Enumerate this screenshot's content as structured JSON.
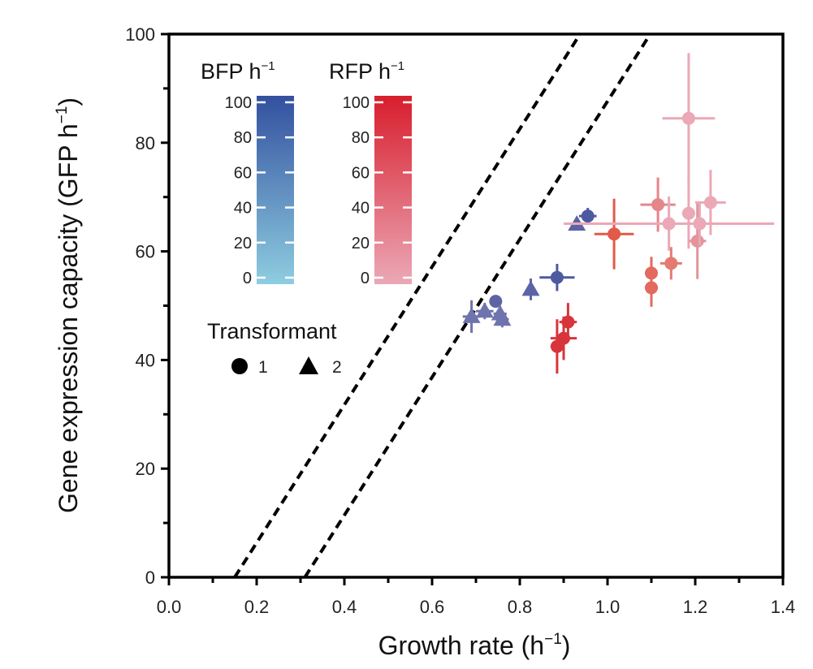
{
  "chart_data": {
    "type": "scatter",
    "xlabel": "Growth rate (h",
    "ylabel": "Gene expression capacity (GFP h",
    "unit_superscript": "−1",
    "xlim": [
      0.0,
      1.4
    ],
    "ylim": [
      0,
      100
    ],
    "xticks": [
      "0.0",
      "0.2",
      "0.4",
      "0.6",
      "0.8",
      "1.0",
      "1.2",
      "1.4"
    ],
    "yticks": [
      "0",
      "20",
      "40",
      "60",
      "80",
      "100"
    ],
    "reference_lines": [
      {
        "name": "upper-dashed-line",
        "x_intercept": 0.15,
        "slope": 127
      },
      {
        "name": "lower-dashed-line",
        "x_intercept": 0.31,
        "slope": 127
      }
    ],
    "colorbars": [
      {
        "title": "BFP h",
        "ticks": [
          "100",
          "80",
          "60",
          "40",
          "20",
          "0"
        ],
        "low_color": "#8ecde0",
        "high_color": "#33509f"
      },
      {
        "title": "RFP h",
        "ticks": [
          "100",
          "80",
          "60",
          "40",
          "20",
          "0"
        ],
        "low_color": "#eba8b6",
        "high_color": "#d81e2d"
      }
    ],
    "shape_legend": {
      "title": "Transformant",
      "items": [
        {
          "shape": "circle",
          "label": "1"
        },
        {
          "shape": "triangle",
          "label": "2"
        }
      ]
    },
    "series": [
      {
        "name": "BFP",
        "points": [
          {
            "x": 0.69,
            "y": 48.0,
            "xerr": 0.02,
            "yerr": 3.0,
            "shape": "triangle",
            "color": "#6f74ae"
          },
          {
            "x": 0.72,
            "y": 49.0,
            "xerr": 0.02,
            "yerr": 1.5,
            "shape": "triangle",
            "color": "#6f74ae"
          },
          {
            "x": 0.745,
            "y": 50.8,
            "xerr": 0.0,
            "yerr": 0.0,
            "shape": "circle",
            "color": "#5c64a6"
          },
          {
            "x": 0.755,
            "y": 48.5,
            "xerr": 0.015,
            "yerr": 1.5,
            "shape": "triangle",
            "color": "#6f74ae"
          },
          {
            "x": 0.76,
            "y": 47.5,
            "xerr": 0.015,
            "yerr": 1.5,
            "shape": "triangle",
            "color": "#6f74ae"
          },
          {
            "x": 0.825,
            "y": 53.0,
            "xerr": 0.01,
            "yerr": 2.0,
            "shape": "triangle",
            "color": "#5c64a6"
          },
          {
            "x": 0.885,
            "y": 55.2,
            "xerr": 0.04,
            "yerr": 2.5,
            "shape": "circle",
            "color": "#4d5aa0"
          },
          {
            "x": 0.93,
            "y": 65.0,
            "xerr": 0.0,
            "yerr": 0.0,
            "shape": "triangle",
            "color": "#5c64a6"
          },
          {
            "x": 0.955,
            "y": 66.5,
            "xerr": 0.02,
            "yerr": 1.5,
            "shape": "circle",
            "color": "#4d5aa0"
          }
        ]
      },
      {
        "name": "RFP",
        "points": [
          {
            "x": 0.885,
            "y": 42.5,
            "xerr": 0.015,
            "yerr": 5.0,
            "shape": "circle",
            "color": "#d8343c"
          },
          {
            "x": 0.9,
            "y": 44.0,
            "xerr": 0.03,
            "yerr": 4.0,
            "shape": "circle",
            "color": "#d8343c"
          },
          {
            "x": 0.91,
            "y": 47.0,
            "xerr": 0.02,
            "yerr": 3.5,
            "shape": "circle",
            "color": "#d8343c"
          },
          {
            "x": 1.015,
            "y": 63.2,
            "xerr": 0.045,
            "yerr": 6.5,
            "shape": "circle",
            "color": "#e25a4a"
          },
          {
            "x": 1.1,
            "y": 56.0,
            "xerr": 0.0,
            "yerr": 3.0,
            "shape": "circle",
            "color": "#e36a5e"
          },
          {
            "x": 1.1,
            "y": 53.3,
            "xerr": 0.015,
            "yerr": 3.5,
            "shape": "circle",
            "color": "#e36a5e"
          },
          {
            "x": 1.145,
            "y": 57.8,
            "xerr": 0.025,
            "yerr": 3.0,
            "shape": "circle",
            "color": "#e57a72"
          },
          {
            "x": 1.115,
            "y": 68.6,
            "xerr": 0.04,
            "yerr": 5.0,
            "shape": "circle",
            "color": "#e5868a"
          },
          {
            "x": 1.14,
            "y": 65.1,
            "xerr": 0.24,
            "yerr": 5.0,
            "shape": "circle",
            "color": "#eba8b6"
          },
          {
            "x": 1.185,
            "y": 84.5,
            "xerr": 0.06,
            "yerr": 12.0,
            "shape": "circle",
            "color": "#eba8b6"
          },
          {
            "x": 1.185,
            "y": 67.0,
            "xerr": 0.015,
            "yerr": 6.5,
            "shape": "circle",
            "color": "#eba8b6"
          },
          {
            "x": 1.205,
            "y": 61.9,
            "xerr": 0.02,
            "yerr": 7.0,
            "shape": "circle",
            "color": "#e5939a"
          },
          {
            "x": 1.21,
            "y": 65.1,
            "xerr": 0.015,
            "yerr": 4.0,
            "shape": "circle",
            "color": "#eba8b6"
          },
          {
            "x": 1.235,
            "y": 69.0,
            "xerr": 0.035,
            "yerr": 6.0,
            "shape": "circle",
            "color": "#eba8b6"
          }
        ]
      }
    ]
  }
}
